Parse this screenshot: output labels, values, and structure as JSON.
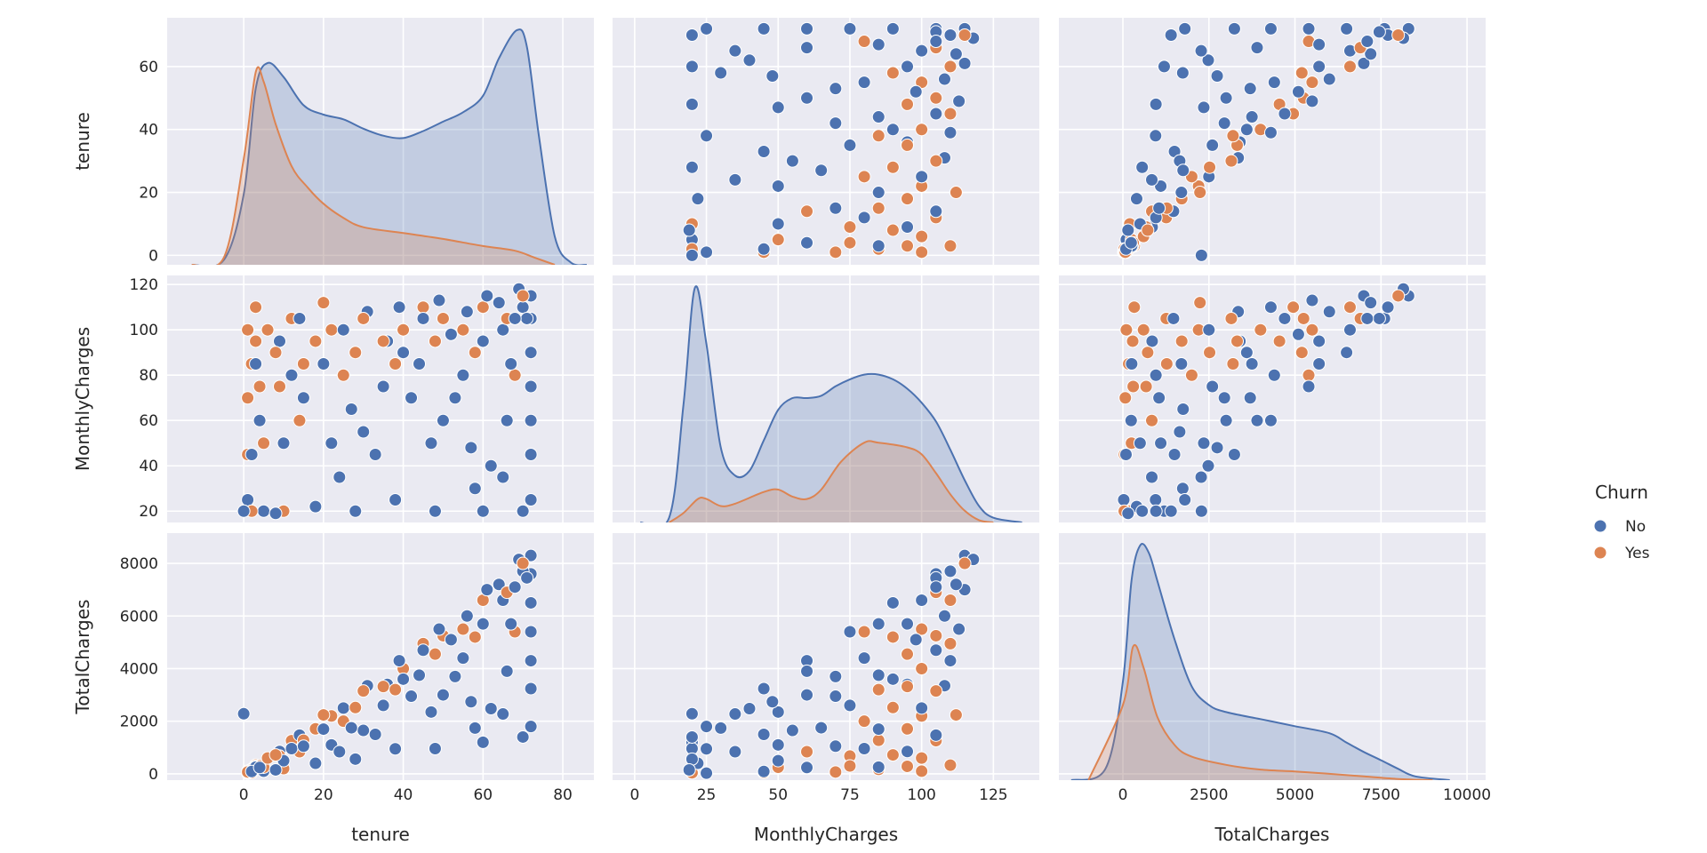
{
  "chart_data": {
    "type": "pairplot",
    "variables": [
      "tenure",
      "MonthlyCharges",
      "TotalCharges"
    ],
    "hue": "Churn",
    "legend": {
      "title": "Churn",
      "entries": [
        "No",
        "Yes"
      ],
      "placement": "right"
    },
    "colors": {
      "No": "#4c72b0",
      "Yes": "#dd8452",
      "background": "#eaeaf2",
      "grid": "#ffffff"
    },
    "grid": true,
    "axes": {
      "tenure": {
        "lim": [
          -19.2,
          87.8
        ],
        "row_lim": [
          -3,
          75.5
        ],
        "ticks": [
          0,
          20,
          40,
          60,
          80
        ],
        "row_ticks": [
          0,
          20,
          40,
          60
        ]
      },
      "MonthlyCharges": {
        "lim": [
          -7.7,
          141
        ],
        "row_lim": [
          15,
          124
        ],
        "ticks": [
          0,
          25,
          50,
          75,
          100,
          125
        ],
        "row_ticks": [
          20,
          40,
          60,
          80,
          100,
          120
        ]
      },
      "TotalCharges": {
        "lim": [
          -1860,
          10540
        ],
        "row_lim": [
          -240,
          9150
        ],
        "ticks": [
          0,
          2500,
          5000,
          7500,
          10000
        ],
        "row_ticks": [
          0,
          2000,
          4000,
          6000,
          8000
        ]
      }
    },
    "points_fields": [
      "tenure",
      "MonthlyCharges",
      "TotalCharges",
      "Churn"
    ],
    "points": [
      [
        72,
        115,
        8300,
        "No"
      ],
      [
        1,
        70,
        70,
        "Yes"
      ],
      [
        70,
        110,
        7700,
        "No"
      ],
      [
        2,
        85,
        170,
        "Yes"
      ],
      [
        68,
        105,
        7100,
        "No"
      ],
      [
        72,
        90,
        6500,
        "No"
      ],
      [
        3,
        95,
        285,
        "Yes"
      ],
      [
        65,
        100,
        6600,
        "No"
      ],
      [
        60,
        95,
        5700,
        "No"
      ],
      [
        1,
        45,
        45,
        "Yes"
      ],
      [
        72,
        25,
        1800,
        "No"
      ],
      [
        70,
        20,
        1400,
        "No"
      ],
      [
        4,
        75,
        300,
        "Yes"
      ],
      [
        55,
        80,
        4400,
        "No"
      ],
      [
        50,
        60,
        3000,
        "No"
      ],
      [
        6,
        100,
        600,
        "Yes"
      ],
      [
        45,
        105,
        4700,
        "No"
      ],
      [
        40,
        90,
        3600,
        "No"
      ],
      [
        8,
        90,
        720,
        "Yes"
      ],
      [
        35,
        75,
        2600,
        "No"
      ],
      [
        30,
        55,
        1650,
        "No"
      ],
      [
        12,
        105,
        1260,
        "Yes"
      ],
      [
        25,
        100,
        2500,
        "No"
      ],
      [
        20,
        85,
        1700,
        "No"
      ],
      [
        15,
        85,
        1275,
        "Yes"
      ],
      [
        15,
        70,
        1050,
        "No"
      ],
      [
        10,
        50,
        500,
        "No"
      ],
      [
        18,
        95,
        1710,
        "Yes"
      ],
      [
        5,
        20,
        100,
        "No"
      ],
      [
        2,
        45,
        90,
        "No"
      ],
      [
        22,
        100,
        2200,
        "Yes"
      ],
      [
        1,
        25,
        25,
        "No"
      ],
      [
        66,
        60,
        3900,
        "No"
      ],
      [
        25,
        80,
        2000,
        "Yes"
      ],
      [
        62,
        40,
        2480,
        "No"
      ],
      [
        58,
        30,
        1740,
        "No"
      ],
      [
        30,
        105,
        3150,
        "Yes"
      ],
      [
        48,
        20,
        960,
        "No"
      ],
      [
        38,
        25,
        950,
        "No"
      ],
      [
        35,
        95,
        3320,
        "Yes"
      ],
      [
        28,
        20,
        560,
        "No"
      ],
      [
        18,
        22,
        400,
        "No"
      ],
      [
        40,
        100,
        4000,
        "Yes"
      ],
      [
        8,
        19,
        150,
        "No"
      ],
      [
        72,
        60,
        4300,
        "No"
      ],
      [
        45,
        110,
        4950,
        "Yes"
      ],
      [
        72,
        75,
        5400,
        "No"
      ],
      [
        71,
        105,
        7450,
        "No"
      ],
      [
        50,
        105,
        5250,
        "Yes"
      ],
      [
        69,
        118,
        8150,
        "No"
      ],
      [
        64,
        112,
        7200,
        "No"
      ],
      [
        55,
        100,
        5500,
        "Yes"
      ],
      [
        56,
        108,
        6000,
        "No"
      ],
      [
        52,
        98,
        5100,
        "No"
      ],
      [
        60,
        110,
        6600,
        "Yes"
      ],
      [
        44,
        85,
        3750,
        "No"
      ],
      [
        42,
        70,
        2950,
        "No"
      ],
      [
        66,
        105,
        6900,
        "Yes"
      ],
      [
        36,
        95,
        3400,
        "No"
      ],
      [
        33,
        45,
        1500,
        "No"
      ],
      [
        70,
        115,
        8000,
        "Yes"
      ],
      [
        27,
        65,
        1750,
        "No"
      ],
      [
        22,
        50,
        1100,
        "No"
      ],
      [
        10,
        20,
        200,
        "Yes"
      ],
      [
        12,
        80,
        960,
        "No"
      ],
      [
        9,
        95,
        850,
        "No"
      ],
      [
        2,
        20,
        40,
        "Yes"
      ],
      [
        4,
        60,
        240,
        "No"
      ],
      [
        3,
        85,
        255,
        "No"
      ],
      [
        5,
        50,
        250,
        "Yes"
      ],
      [
        60,
        20,
        1200,
        "No"
      ],
      [
        67,
        85,
        5700,
        "No"
      ],
      [
        9,
        75,
        675,
        "Yes"
      ],
      [
        53,
        70,
        3700,
        "No"
      ],
      [
        47,
        50,
        2350,
        "No"
      ],
      [
        14,
        60,
        840,
        "Yes"
      ],
      [
        24,
        35,
        840,
        "No"
      ],
      [
        14,
        105,
        1470,
        "No"
      ],
      [
        28,
        90,
        2520,
        "Yes"
      ],
      [
        72,
        45,
        3240,
        "No"
      ],
      [
        72,
        105,
        7600,
        "No"
      ],
      [
        38,
        85,
        3200,
        "Yes"
      ],
      [
        61,
        115,
        7000,
        "No"
      ],
      [
        49,
        113,
        5500,
        "No"
      ],
      [
        48,
        95,
        4550,
        "Yes"
      ],
      [
        39,
        110,
        4300,
        "No"
      ],
      [
        31,
        108,
        3350,
        "No"
      ],
      [
        58,
        90,
        5200,
        "Yes"
      ],
      [
        57,
        48,
        2740,
        "No"
      ],
      [
        65,
        35,
        2275,
        "No"
      ],
      [
        1,
        100,
        100,
        "Yes"
      ],
      [
        3,
        110,
        330,
        "Yes"
      ],
      [
        20,
        112,
        2240,
        "Yes"
      ],
      [
        68,
        80,
        5400,
        "Yes"
      ],
      [
        0,
        20,
        2283,
        "No"
      ]
    ],
    "kde_relative_density": {
      "tenure": {
        "No": [
          [
            -13,
            0
          ],
          [
            -5,
            0.02
          ],
          [
            0,
            0.3
          ],
          [
            3,
            0.75
          ],
          [
            6,
            0.86
          ],
          [
            10,
            0.8
          ],
          [
            15,
            0.68
          ],
          [
            20,
            0.64
          ],
          [
            25,
            0.62
          ],
          [
            30,
            0.58
          ],
          [
            35,
            0.55
          ],
          [
            40,
            0.54
          ],
          [
            45,
            0.57
          ],
          [
            50,
            0.61
          ],
          [
            55,
            0.65
          ],
          [
            60,
            0.72
          ],
          [
            64,
            0.88
          ],
          [
            68.5,
            1.0
          ],
          [
            71,
            0.93
          ],
          [
            74,
            0.55
          ],
          [
            78,
            0.12
          ],
          [
            82,
            0.01
          ],
          [
            86,
            0
          ]
        ],
        "Yes": [
          [
            -13,
            0
          ],
          [
            -5,
            0.03
          ],
          [
            0,
            0.45
          ],
          [
            3,
            0.82
          ],
          [
            5,
            0.78
          ],
          [
            8,
            0.6
          ],
          [
            12,
            0.42
          ],
          [
            16,
            0.33
          ],
          [
            20,
            0.26
          ],
          [
            25,
            0.2
          ],
          [
            30,
            0.16
          ],
          [
            40,
            0.135
          ],
          [
            50,
            0.11
          ],
          [
            60,
            0.08
          ],
          [
            68,
            0.06
          ],
          [
            73,
            0.03
          ],
          [
            78,
            0
          ]
        ]
      },
      "MonthlyCharges": {
        "No": [
          [
            2,
            0
          ],
          [
            12,
            0.02
          ],
          [
            17,
            0.5
          ],
          [
            21,
            1.0
          ],
          [
            25,
            0.76
          ],
          [
            30,
            0.32
          ],
          [
            35,
            0.2
          ],
          [
            40,
            0.22
          ],
          [
            45,
            0.35
          ],
          [
            50,
            0.48
          ],
          [
            55,
            0.53
          ],
          [
            60,
            0.53
          ],
          [
            65,
            0.54
          ],
          [
            70,
            0.58
          ],
          [
            75,
            0.61
          ],
          [
            80,
            0.63
          ],
          [
            85,
            0.63
          ],
          [
            90,
            0.61
          ],
          [
            95,
            0.57
          ],
          [
            100,
            0.51
          ],
          [
            105,
            0.43
          ],
          [
            110,
            0.31
          ],
          [
            115,
            0.18
          ],
          [
            120,
            0.07
          ],
          [
            125,
            0.02
          ],
          [
            135,
            0
          ]
        ],
        "Yes": [
          [
            12,
            0
          ],
          [
            17,
            0.04
          ],
          [
            22,
            0.1
          ],
          [
            25,
            0.1
          ],
          [
            30,
            0.07
          ],
          [
            35,
            0.08
          ],
          [
            45,
            0.13
          ],
          [
            50,
            0.14
          ],
          [
            55,
            0.11
          ],
          [
            60,
            0.1
          ],
          [
            65,
            0.14
          ],
          [
            72,
            0.26
          ],
          [
            80,
            0.34
          ],
          [
            85,
            0.34
          ],
          [
            95,
            0.32
          ],
          [
            100,
            0.29
          ],
          [
            105,
            0.21
          ],
          [
            110,
            0.12
          ],
          [
            115,
            0.05
          ],
          [
            120,
            0.01
          ],
          [
            125,
            0
          ]
        ]
      },
      "TotalCharges": {
        "No": [
          [
            -1500,
            0
          ],
          [
            -500,
            0.05
          ],
          [
            0,
            0.42
          ],
          [
            250,
            0.85
          ],
          [
            500,
            1.0
          ],
          [
            750,
            0.97
          ],
          [
            1000,
            0.85
          ],
          [
            1500,
            0.6
          ],
          [
            2000,
            0.4
          ],
          [
            2500,
            0.32
          ],
          [
            3000,
            0.29
          ],
          [
            4000,
            0.26
          ],
          [
            5000,
            0.23
          ],
          [
            6000,
            0.2
          ],
          [
            6500,
            0.16
          ],
          [
            7000,
            0.12
          ],
          [
            7500,
            0.085
          ],
          [
            8000,
            0.048
          ],
          [
            8500,
            0.016
          ],
          [
            9500,
            0
          ]
        ],
        "Yes": [
          [
            -1000,
            0
          ],
          [
            0,
            0.32
          ],
          [
            300,
            0.57
          ],
          [
            600,
            0.48
          ],
          [
            1000,
            0.27
          ],
          [
            1500,
            0.15
          ],
          [
            2000,
            0.1
          ],
          [
            3000,
            0.065
          ],
          [
            4000,
            0.045
          ],
          [
            5000,
            0.037
          ],
          [
            6000,
            0.027
          ],
          [
            7000,
            0.016
          ],
          [
            8000,
            0.005
          ],
          [
            9000,
            0
          ]
        ]
      }
    }
  }
}
